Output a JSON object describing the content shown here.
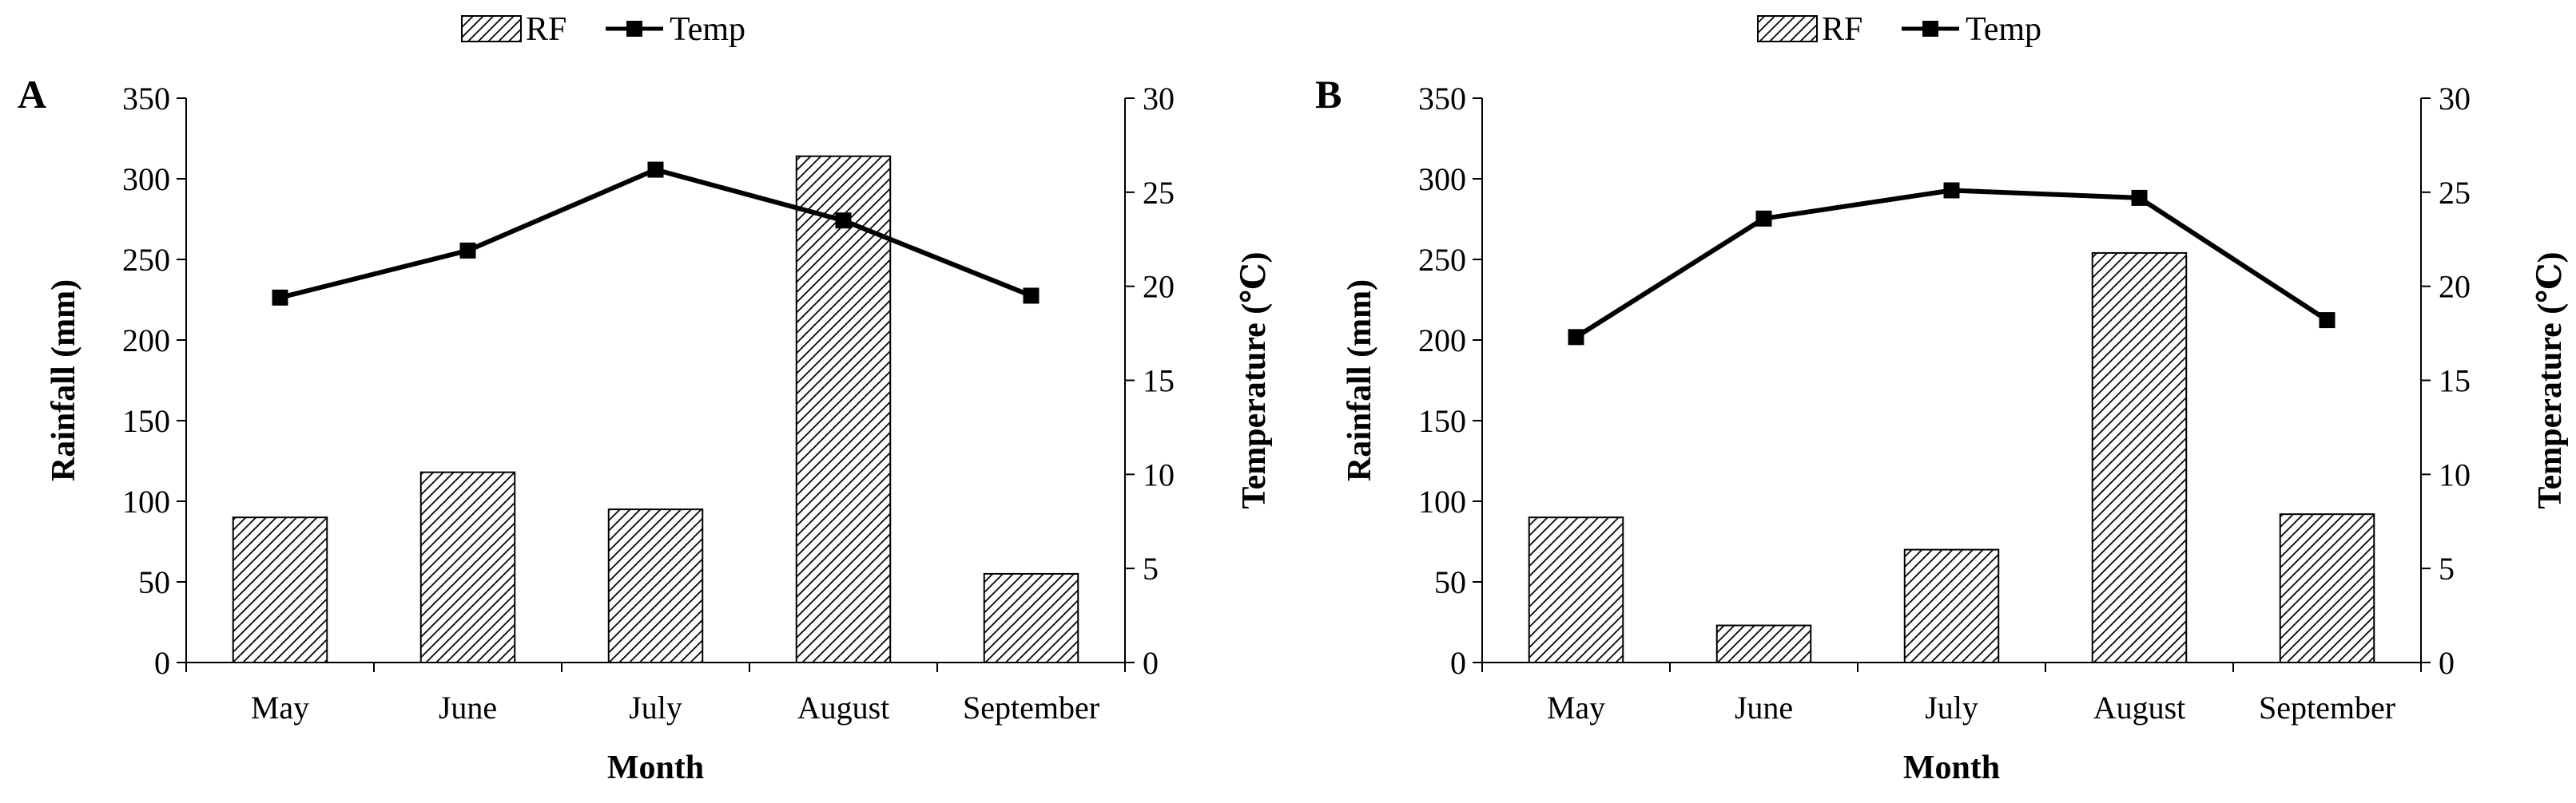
{
  "legend": {
    "bar_label": "RF",
    "line_label": "Temp"
  },
  "chart_data": [
    {
      "panel": "A",
      "type": "bar+line",
      "categories": [
        "May",
        "June",
        "July",
        "August",
        "September"
      ],
      "series": [
        {
          "name": "RF",
          "type": "bar",
          "axis": "left",
          "values": [
            90,
            118,
            95,
            314,
            55
          ]
        },
        {
          "name": "Temp",
          "type": "line",
          "axis": "right",
          "values": [
            19.4,
            21.9,
            26.2,
            23.5,
            19.5
          ]
        }
      ],
      "xlabel": "Month",
      "ylabel": "Rainfall (mm)",
      "y2label": "Temperature (℃)",
      "ylim": [
        0,
        350
      ],
      "y2lim": [
        0,
        30
      ],
      "yticks": [
        0,
        50,
        100,
        150,
        200,
        250,
        300,
        350
      ],
      "y2ticks": [
        0,
        5,
        10,
        15,
        20,
        25,
        30
      ],
      "grid": false
    },
    {
      "panel": "B",
      "type": "bar+line",
      "categories": [
        "May",
        "June",
        "July",
        "August",
        "September"
      ],
      "series": [
        {
          "name": "RF",
          "type": "bar",
          "axis": "left",
          "values": [
            90,
            23,
            70,
            254,
            92
          ]
        },
        {
          "name": "Temp",
          "type": "line",
          "axis": "right",
          "values": [
            17.3,
            23.6,
            25.1,
            24.7,
            18.2
          ]
        }
      ],
      "xlabel": "Month",
      "ylabel": "Rainfall (mm)",
      "y2label": "Temperature (℃)",
      "ylim": [
        0,
        350
      ],
      "y2lim": [
        0,
        30
      ],
      "yticks": [
        0,
        50,
        100,
        150,
        200,
        250,
        300,
        350
      ],
      "y2ticks": [
        0,
        5,
        10,
        15,
        20,
        25,
        30
      ],
      "grid": false
    }
  ]
}
